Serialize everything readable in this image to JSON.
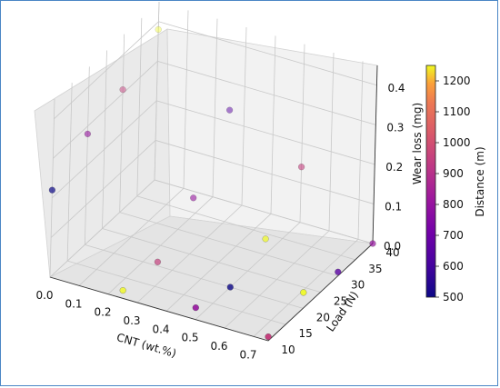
{
  "chart_data": {
    "type": "scatter",
    "projection": "3d",
    "title": "",
    "xlabel": "CNT (wt.%)",
    "ylabel": "Load (N)",
    "zlabel": "Wear loss (mg)",
    "colorbar_label": "Distance (m)",
    "colormap": "plasma",
    "xlim": [
      0.0,
      0.75
    ],
    "ylim": [
      10,
      40
    ],
    "zlim": [
      0.0,
      0.45
    ],
    "clim": [
      500,
      1250
    ],
    "grid": true,
    "x_ticks": [
      "0.0",
      "0.1",
      "0.2",
      "0.3",
      "0.4",
      "0.5",
      "0.6",
      "0.7"
    ],
    "y_ticks": [
      "10",
      "15",
      "20",
      "25",
      "30",
      "35",
      "40"
    ],
    "z_ticks": [
      "0.0",
      "0.1",
      "0.2",
      "0.3",
      "0.4"
    ],
    "colorbar_ticks": [
      "500",
      "600",
      "700",
      "800",
      "900",
      "1000",
      "1100",
      "1200"
    ],
    "points": [
      {
        "x": 0.0,
        "y": 10,
        "z": 0.22,
        "c": 500
      },
      {
        "x": 0.0,
        "y": 20,
        "z": 0.28,
        "c": 800
      },
      {
        "x": 0.0,
        "y": 30,
        "z": 0.31,
        "c": 950
      },
      {
        "x": 0.0,
        "y": 40,
        "z": 0.38,
        "c": 1250
      },
      {
        "x": 0.25,
        "y": 10,
        "z": 0.02,
        "c": 1250
      },
      {
        "x": 0.25,
        "y": 20,
        "z": 0.01,
        "c": 950
      },
      {
        "x": 0.25,
        "y": 30,
        "z": 0.09,
        "c": 800
      },
      {
        "x": 0.25,
        "y": 40,
        "z": 0.23,
        "c": 650
      },
      {
        "x": 0.5,
        "y": 10,
        "z": 0.03,
        "c": 800
      },
      {
        "x": 0.5,
        "y": 20,
        "z": 0.0,
        "c": 500
      },
      {
        "x": 0.5,
        "y": 30,
        "z": 0.04,
        "c": 1250
      },
      {
        "x": 0.5,
        "y": 40,
        "z": 0.14,
        "c": 950
      },
      {
        "x": 0.75,
        "y": 10,
        "z": 0.01,
        "c": 950
      },
      {
        "x": 0.75,
        "y": 20,
        "z": 0.04,
        "c": 1250
      },
      {
        "x": 0.75,
        "y": 30,
        "z": 0.01,
        "c": 650
      },
      {
        "x": 0.75,
        "y": 40,
        "z": 0.0,
        "c": 800
      }
    ]
  }
}
